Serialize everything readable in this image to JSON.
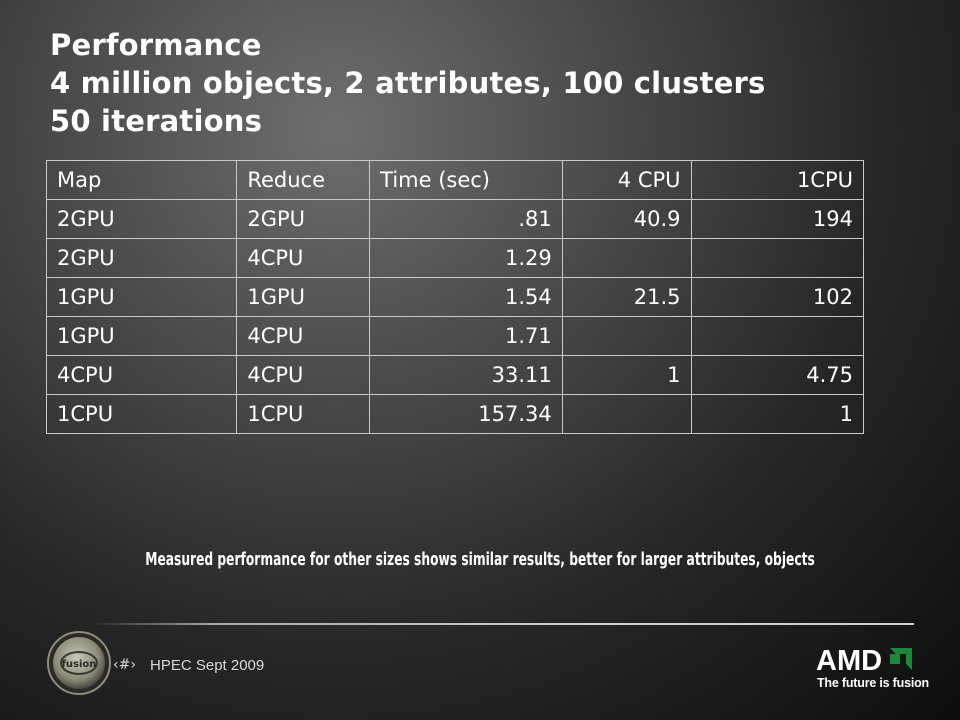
{
  "slide": {
    "title_lines": [
      "Performance",
      "4 million objects, 2 attributes, 100 clusters",
      "50 iterations"
    ],
    "table": {
      "headers": [
        "Map",
        "Reduce",
        "Time (sec)",
        "4 CPU",
        "1CPU"
      ],
      "rows": [
        [
          "2GPU",
          "2GPU",
          ".81",
          "40.9",
          "194"
        ],
        [
          "2GPU",
          "4CPU",
          "1.29",
          "",
          ""
        ],
        [
          "1GPU",
          "1GPU",
          "1.54",
          "21.5",
          "102"
        ],
        [
          "1GPU",
          "4CPU",
          "1.71",
          "",
          ""
        ],
        [
          "4CPU",
          "4CPU",
          "33.11",
          "1",
          "4.75"
        ],
        [
          "1CPU",
          "1CPU",
          "157.34",
          "",
          "1"
        ]
      ]
    },
    "note": "Measured performance for other sizes shows similar  results, better for larger attributes, objects"
  },
  "footer": {
    "badge_text": "fusion",
    "slide_number": "‹#›",
    "event": "HPEC Sept 2009",
    "logo_text": "AMD",
    "tagline": "The future is fusion"
  },
  "colors": {
    "text": "#ffffff",
    "rule": "#cfcfcf",
    "amd_green": "#1a8a3a"
  }
}
